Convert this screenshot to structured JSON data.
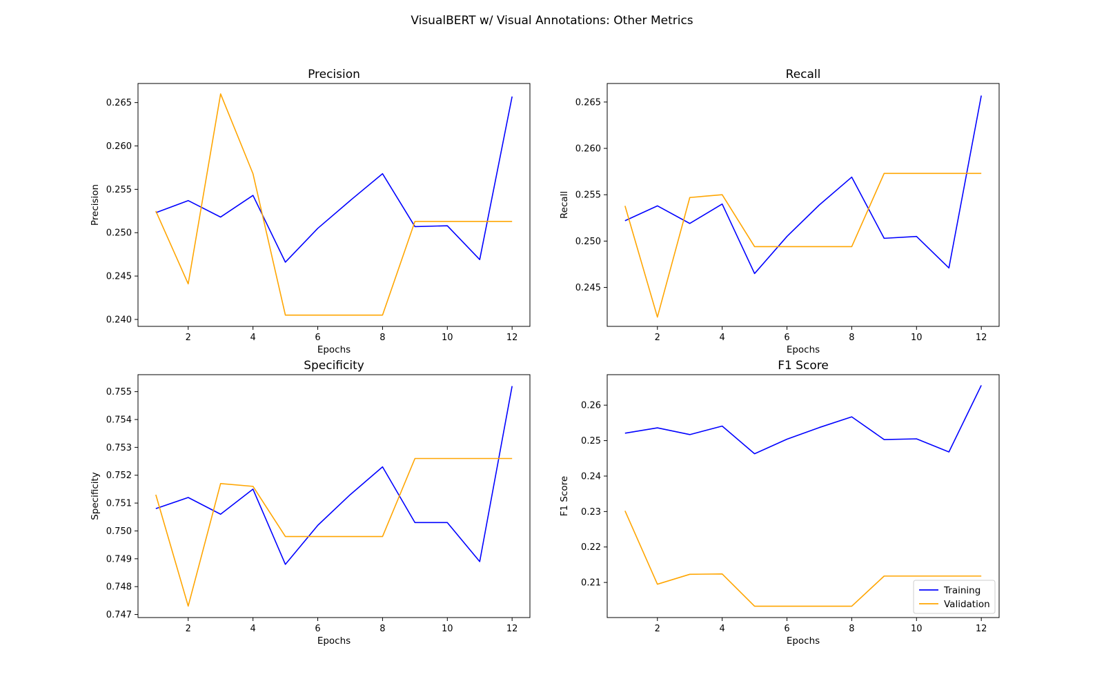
{
  "figure_title": "VisualBERT w/ Visual Annotations: Other Metrics",
  "colors": {
    "training": "#0000ff",
    "validation": "#ffa500"
  },
  "legend": {
    "placement": "lower-right",
    "entries": [
      "Training",
      "Validation"
    ]
  },
  "chart_data": [
    {
      "type": "line",
      "title": "Precision",
      "xlabel": "Epochs",
      "ylabel": "Precision",
      "x": [
        1,
        2,
        3,
        4,
        5,
        6,
        7,
        8,
        9,
        10,
        11,
        12
      ],
      "xticks": [
        "2",
        "4",
        "6",
        "8",
        "10",
        "12"
      ],
      "yticks": [
        "0.240",
        "0.245",
        "0.250",
        "0.255",
        "0.260",
        "0.265"
      ],
      "ylim": [
        0.2392,
        0.2672
      ],
      "xlim": [
        0.45,
        12.55
      ],
      "grid": false,
      "series": [
        {
          "name": "Training",
          "values": [
            0.2523,
            0.2537,
            0.2518,
            0.2543,
            0.2466,
            0.2505,
            0.2537,
            0.2568,
            0.2507,
            0.2508,
            0.2469,
            0.2657
          ]
        },
        {
          "name": "Validation",
          "values": [
            0.2525,
            0.2441,
            0.266,
            0.2568,
            0.2405,
            0.2405,
            0.2405,
            0.2405,
            0.2513,
            0.2513,
            0.2513,
            0.2513
          ]
        }
      ]
    },
    {
      "type": "line",
      "title": "Recall",
      "xlabel": "Epochs",
      "ylabel": "Recall",
      "x": [
        1,
        2,
        3,
        4,
        5,
        6,
        7,
        8,
        9,
        10,
        11,
        12
      ],
      "xticks": [
        "2",
        "4",
        "6",
        "8",
        "10",
        "12"
      ],
      "yticks": [
        "0.245",
        "0.250",
        "0.255",
        "0.260",
        "0.265"
      ],
      "ylim": [
        0.2408,
        0.267
      ],
      "xlim": [
        0.45,
        12.55
      ],
      "grid": false,
      "series": [
        {
          "name": "Training",
          "values": [
            0.2522,
            0.2538,
            0.2519,
            0.254,
            0.2465,
            0.2505,
            0.2539,
            0.2569,
            0.2503,
            0.2505,
            0.2471,
            0.2657
          ]
        },
        {
          "name": "Validation",
          "values": [
            0.2538,
            0.2418,
            0.2547,
            0.255,
            0.2494,
            0.2494,
            0.2494,
            0.2494,
            0.2573,
            0.2573,
            0.2573,
            0.2573
          ]
        }
      ]
    },
    {
      "type": "line",
      "title": "Specificity",
      "xlabel": "Epochs",
      "ylabel": "Specificity",
      "x": [
        1,
        2,
        3,
        4,
        5,
        6,
        7,
        8,
        9,
        10,
        11,
        12
      ],
      "xticks": [
        "2",
        "4",
        "6",
        "8",
        "10",
        "12"
      ],
      "yticks": [
        "0.747",
        "0.748",
        "0.749",
        "0.750",
        "0.751",
        "0.752",
        "0.753",
        "0.754",
        "0.755"
      ],
      "ylim": [
        0.74689,
        0.75561
      ],
      "xlim": [
        0.45,
        12.55
      ],
      "grid": false,
      "series": [
        {
          "name": "Training",
          "values": [
            0.7508,
            0.7512,
            0.7506,
            0.7515,
            0.7488,
            0.7502,
            0.7513,
            0.7523,
            0.7503,
            0.7503,
            0.7489,
            0.7552
          ]
        },
        {
          "name": "Validation",
          "values": [
            0.7513,
            0.7473,
            0.7517,
            0.7516,
            0.7498,
            0.7498,
            0.7498,
            0.7498,
            0.7526,
            0.7526,
            0.7526,
            0.7526
          ]
        }
      ]
    },
    {
      "type": "line",
      "title": "F1 Score",
      "xlabel": "Epochs",
      "ylabel": "F1 Score",
      "x": [
        1,
        2,
        3,
        4,
        5,
        6,
        7,
        8,
        9,
        10,
        11,
        12
      ],
      "xticks": [
        "2",
        "4",
        "6",
        "8",
        "10",
        "12"
      ],
      "yticks": [
        "0.21",
        "0.22",
        "0.23",
        "0.24",
        "0.25",
        "0.26"
      ],
      "ylim": [
        0.2001,
        0.2686
      ],
      "xlim": [
        0.45,
        12.55
      ],
      "grid": false,
      "series": [
        {
          "name": "Training",
          "values": [
            0.2521,
            0.2536,
            0.2517,
            0.2541,
            0.2463,
            0.2504,
            0.2537,
            0.2567,
            0.2503,
            0.2505,
            0.2468,
            0.2656
          ]
        },
        {
          "name": "Validation",
          "values": [
            0.2302,
            0.2095,
            0.2123,
            0.2124,
            0.2033,
            0.2033,
            0.2033,
            0.2033,
            0.2118,
            0.2118,
            0.2118,
            0.2118
          ]
        }
      ]
    }
  ]
}
